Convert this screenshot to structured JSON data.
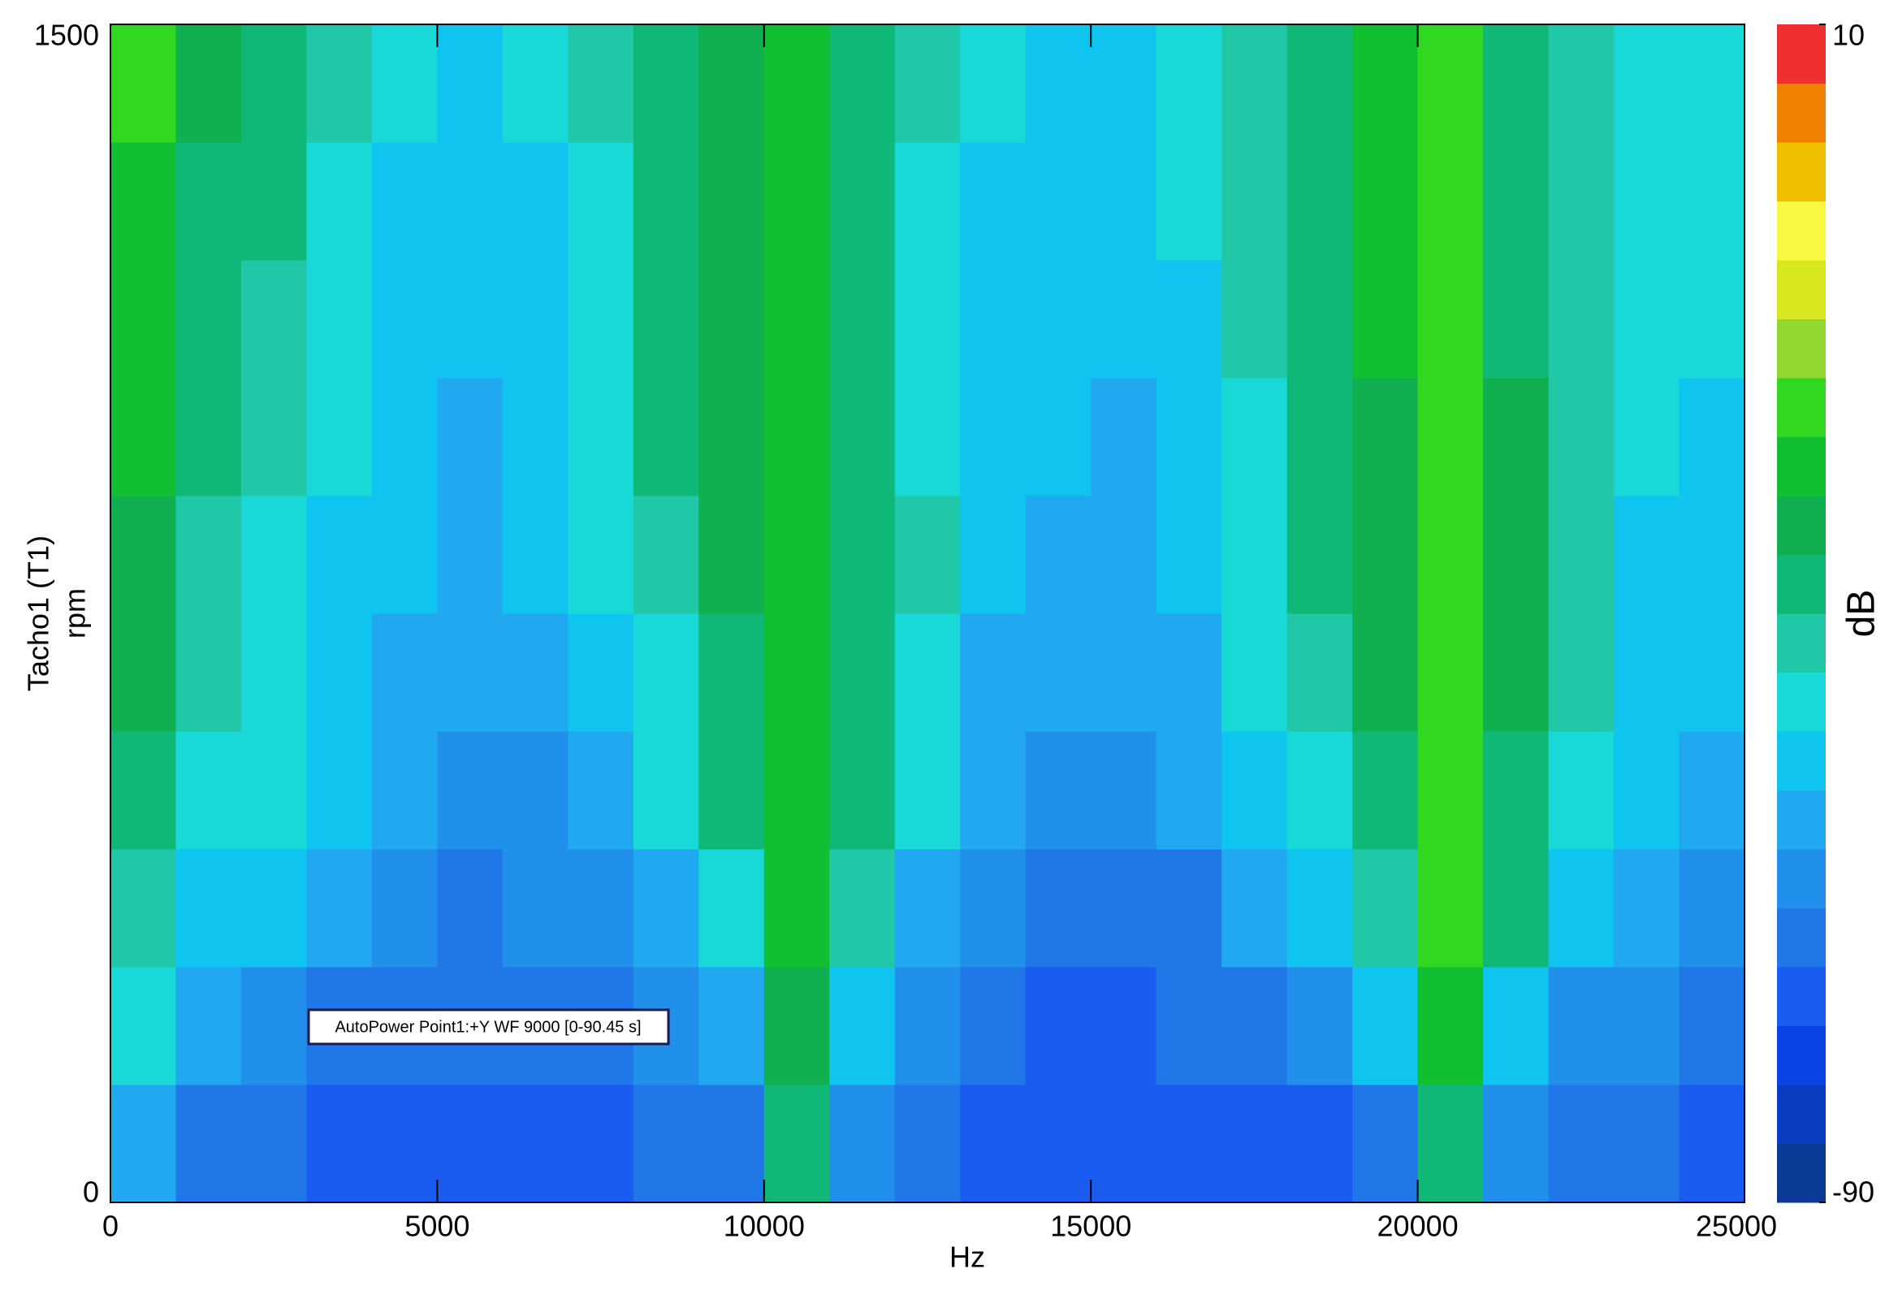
{
  "chart_data": {
    "type": "heatmap",
    "xlabel": "Hz",
    "ylabel": "Tacho1 (T1)",
    "ylabel2": "rpm",
    "annotation": "AutoPower Point1:+Y WF 9000 [0-90.45 s]",
    "xlim": [
      0,
      25000
    ],
    "ylim": [
      0,
      1500
    ],
    "xticks": [
      0,
      5000,
      10000,
      15000,
      20000,
      25000
    ],
    "yticks": [
      0,
      1500
    ],
    "xbins": [
      0,
      1000,
      2000,
      3000,
      4000,
      5000,
      6000,
      7000,
      8000,
      9000,
      10000,
      11000,
      12000,
      13000,
      14000,
      15000,
      16000,
      17000,
      18000,
      19000,
      20000,
      21000,
      22000,
      23000,
      24000,
      25000
    ],
    "ybins": [
      0,
      150,
      300,
      450,
      600,
      750,
      900,
      1050,
      1200,
      1350,
      1500
    ],
    "values": [
      [
        -58,
        -68,
        -70,
        -72,
        -72,
        -74,
        -73,
        -72,
        -70,
        -66,
        -40,
        -64,
        -70,
        -74,
        -75,
        -75,
        -74,
        -73,
        -71,
        -66,
        -38,
        -62,
        -68,
        -70,
        -71
      ],
      [
        -48,
        -60,
        -63,
        -66,
        -68,
        -70,
        -69,
        -68,
        -65,
        -58,
        -32,
        -55,
        -65,
        -70,
        -72,
        -72,
        -70,
        -68,
        -65,
        -55,
        -28,
        -52,
        -62,
        -65,
        -66
      ],
      [
        -42,
        -52,
        -55,
        -60,
        -64,
        -66,
        -65,
        -62,
        -57,
        -46,
        -30,
        -42,
        -56,
        -65,
        -68,
        -68,
        -66,
        -60,
        -53,
        -42,
        -25,
        -40,
        -54,
        -60,
        -61
      ],
      [
        -38,
        -47,
        -50,
        -55,
        -60,
        -63,
        -61,
        -57,
        -50,
        -40,
        -28,
        -37,
        -50,
        -60,
        -63,
        -63,
        -60,
        -54,
        -46,
        -36,
        -24,
        -36,
        -48,
        -55,
        -57
      ],
      [
        -35,
        -45,
        -48,
        -53,
        -57,
        -60,
        -58,
        -53,
        -46,
        -36,
        -27,
        -36,
        -46,
        -56,
        -60,
        -60,
        -56,
        -50,
        -42,
        -33,
        -23,
        -34,
        -45,
        -52,
        -54
      ],
      [
        -32,
        -42,
        -46,
        -51,
        -55,
        -58,
        -55,
        -50,
        -43,
        -34,
        -27,
        -37,
        -45,
        -54,
        -57,
        -58,
        -54,
        -47,
        -40,
        -32,
        -22,
        -35,
        -45,
        -51,
        -52
      ],
      [
        -30,
        -40,
        -44,
        -50,
        -54,
        -57,
        -54,
        -48,
        -40,
        -33,
        -28,
        -38,
        -47,
        -53,
        -55,
        -56,
        -52,
        -46,
        -38,
        -31,
        -22,
        -35,
        -45,
        -50,
        -51
      ],
      [
        -28,
        -38,
        -42,
        -48,
        -53,
        -55,
        -53,
        -46,
        -40,
        -33,
        -29,
        -39,
        -47,
        -52,
        -54,
        -54,
        -51,
        -45,
        -38,
        -30,
        -24,
        -36,
        -45,
        -49,
        -50
      ],
      [
        -27,
        -37,
        -40,
        -47,
        -52,
        -54,
        -52,
        -46,
        -40,
        -33,
        -28,
        -40,
        -46,
        -51,
        -53,
        -53,
        -50,
        -45,
        -38,
        -28,
        -25,
        -38,
        -45,
        -48,
        -49
      ],
      [
        -25,
        -35,
        -38,
        -45,
        -50,
        -52,
        -50,
        -45,
        -40,
        -32,
        -28,
        -40,
        -45,
        -50,
        -52,
        -52,
        -50,
        -45,
        -38,
        -28,
        -24,
        -38,
        -45,
        -48,
        -48
      ]
    ],
    "colorbar": {
      "label": "dB",
      "zlim": [
        -90,
        10
      ],
      "zticks": [
        -90,
        10
      ],
      "colors": [
        "#0a3a96",
        "#0a3cc0",
        "#0a44e6",
        "#1a5cf0",
        "#2078e8",
        "#2090ea",
        "#20a8f0",
        "#10c4f0",
        "#18d8d8",
        "#20c8a8",
        "#10b878",
        "#10b050",
        "#10c030",
        "#30d820",
        "#90d830",
        "#d8e820",
        "#f8f840",
        "#f0c000",
        "#f08000",
        "#f03030"
      ]
    }
  }
}
